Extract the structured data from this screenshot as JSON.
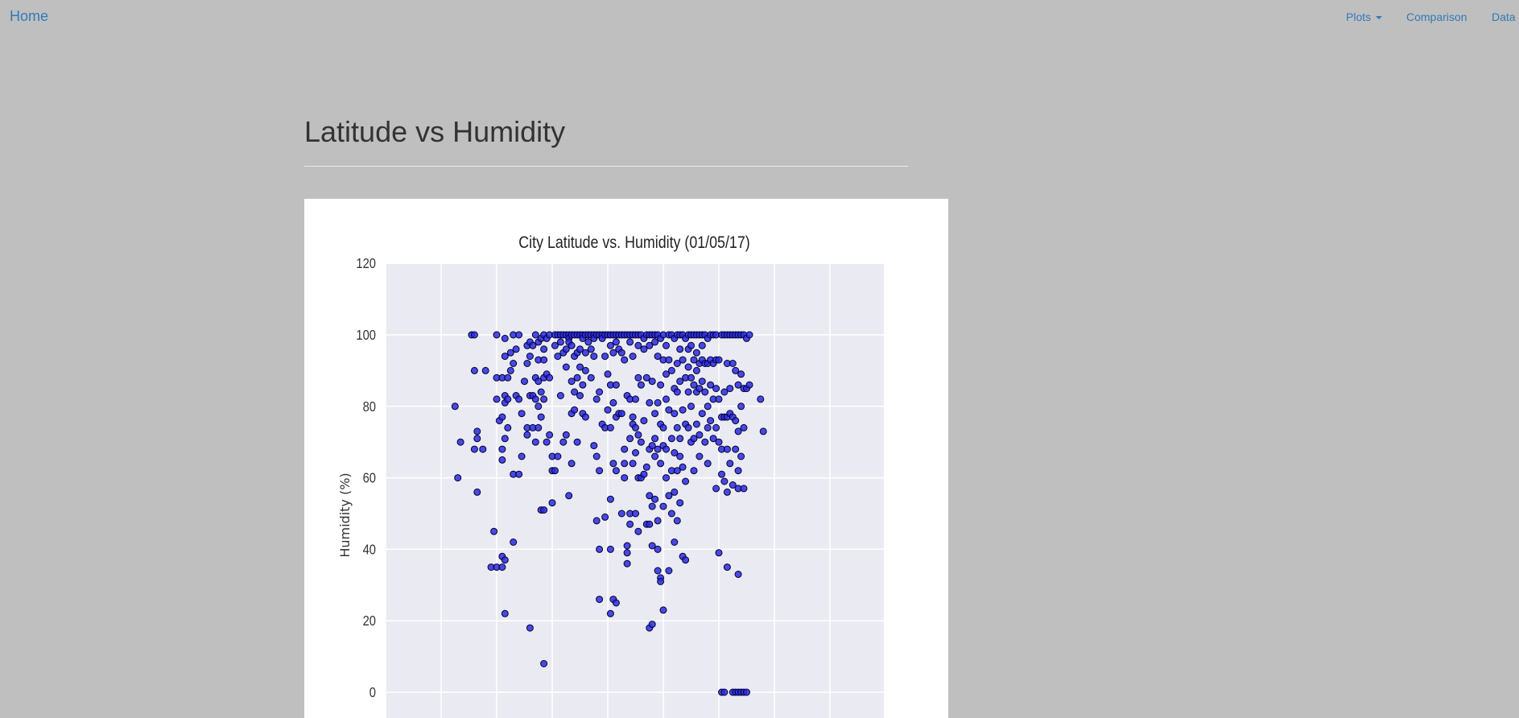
{
  "nav": {
    "brand": "Home",
    "plots_label": "Plots",
    "comparison_label": "Comparison",
    "data_label": "Data"
  },
  "page": {
    "title": "Latitude vs Humidity"
  },
  "chart_data": {
    "type": "scatter",
    "title": "City Latitude vs. Humidity (01/05/17)",
    "xlabel": "",
    "ylabel": "Humidity (%)",
    "xlim": [
      -60,
      120
    ],
    "ylim": [
      -10,
      120
    ],
    "y_ticks": [
      0,
      20,
      40,
      60,
      80,
      100,
      120
    ],
    "x_grid": [
      -60,
      -40,
      -20,
      0,
      20,
      40,
      60,
      80,
      100,
      120
    ],
    "grid": true,
    "marker_color": "#2b2be0",
    "marker_edge": "#000033",
    "plot_bg": "#eaeaf2",
    "points": [
      [
        -35,
        80
      ],
      [
        -34,
        60
      ],
      [
        -33,
        70
      ],
      [
        -29,
        100
      ],
      [
        -28,
        100
      ],
      [
        -28,
        90
      ],
      [
        -28,
        68
      ],
      [
        -27,
        71
      ],
      [
        -27,
        73
      ],
      [
        -27,
        56
      ],
      [
        -25,
        68
      ],
      [
        -24,
        90
      ],
      [
        -22,
        35
      ],
      [
        -21,
        45
      ],
      [
        -20,
        100
      ],
      [
        -20,
        88
      ],
      [
        -20,
        82
      ],
      [
        -20,
        35
      ],
      [
        -19,
        76
      ],
      [
        -18,
        88
      ],
      [
        -18,
        65
      ],
      [
        -18,
        68
      ],
      [
        -18,
        77
      ],
      [
        -18,
        38
      ],
      [
        -18,
        35
      ],
      [
        -17,
        94
      ],
      [
        -17,
        99
      ],
      [
        -17,
        83
      ],
      [
        -17,
        81
      ],
      [
        -17,
        71
      ],
      [
        -17,
        37
      ],
      [
        -17,
        22
      ],
      [
        -16,
        88
      ],
      [
        -16,
        82
      ],
      [
        -16,
        74
      ],
      [
        -15,
        95
      ],
      [
        -15,
        90
      ],
      [
        -14,
        100
      ],
      [
        -14,
        92
      ],
      [
        -14,
        61
      ],
      [
        -14,
        42
      ],
      [
        -13,
        96
      ],
      [
        -13,
        83
      ],
      [
        -12,
        100
      ],
      [
        -12,
        82
      ],
      [
        -12,
        61
      ],
      [
        -11,
        66
      ],
      [
        -11,
        78
      ],
      [
        -10,
        87
      ],
      [
        -9,
        97
      ],
      [
        -9,
        92
      ],
      [
        -9,
        74
      ],
      [
        -9,
        72
      ],
      [
        -8,
        98
      ],
      [
        -8,
        94
      ],
      [
        -8,
        83
      ],
      [
        -8,
        18
      ],
      [
        -7,
        97
      ],
      [
        -7,
        83
      ],
      [
        -7,
        74
      ],
      [
        -6,
        100
      ],
      [
        -6,
        88
      ],
      [
        -6,
        82
      ],
      [
        -6,
        70
      ],
      [
        -5,
        98
      ],
      [
        -5,
        93
      ],
      [
        -5,
        87
      ],
      [
        -5,
        80
      ],
      [
        -5,
        74
      ],
      [
        -4,
        99
      ],
      [
        -4,
        84
      ],
      [
        -4,
        77
      ],
      [
        -4,
        51
      ],
      [
        -3,
        100
      ],
      [
        -3,
        96
      ],
      [
        -3,
        93
      ],
      [
        -3,
        88
      ],
      [
        -3,
        82
      ],
      [
        -3,
        51
      ],
      [
        -3,
        8
      ],
      [
        -2,
        99
      ],
      [
        -2,
        89
      ],
      [
        -2,
        70
      ],
      [
        -1,
        100
      ],
      [
        -1,
        88
      ],
      [
        -1,
        72
      ],
      [
        0,
        66
      ],
      [
        0,
        62
      ],
      [
        0,
        53
      ],
      [
        1,
        100
      ],
      [
        1,
        97
      ],
      [
        1,
        62
      ],
      [
        2,
        100
      ],
      [
        2,
        94
      ],
      [
        2,
        66
      ],
      [
        3,
        100
      ],
      [
        3,
        98
      ],
      [
        3,
        83
      ],
      [
        4,
        100
      ],
      [
        4,
        95
      ],
      [
        4,
        70
      ],
      [
        5,
        100
      ],
      [
        5,
        96
      ],
      [
        5,
        91
      ],
      [
        5,
        72
      ],
      [
        6,
        100
      ],
      [
        6,
        99
      ],
      [
        6,
        98
      ],
      [
        6,
        55
      ],
      [
        7,
        100
      ],
      [
        7,
        97
      ],
      [
        7,
        87
      ],
      [
        7,
        78
      ],
      [
        7,
        64
      ],
      [
        8,
        100
      ],
      [
        8,
        94
      ],
      [
        8,
        84
      ],
      [
        8,
        79
      ],
      [
        9,
        100
      ],
      [
        9,
        95
      ],
      [
        9,
        88
      ],
      [
        9,
        70
      ],
      [
        10,
        100
      ],
      [
        10,
        96
      ],
      [
        10,
        91
      ],
      [
        10,
        83
      ],
      [
        11,
        100
      ],
      [
        11,
        99
      ],
      [
        11,
        86
      ],
      [
        11,
        78
      ],
      [
        12,
        100
      ],
      [
        12,
        95
      ],
      [
        12,
        90
      ],
      [
        12,
        77
      ],
      [
        13,
        100
      ],
      [
        13,
        98
      ],
      [
        14,
        100
      ],
      [
        14,
        96
      ],
      [
        14,
        88
      ],
      [
        15,
        100
      ],
      [
        15,
        99
      ],
      [
        15,
        94
      ],
      [
        15,
        69
      ],
      [
        16,
        100
      ],
      [
        16,
        82
      ],
      [
        16,
        66
      ],
      [
        16,
        48
      ],
      [
        17,
        100
      ],
      [
        17,
        84
      ],
      [
        17,
        62
      ],
      [
        17,
        40
      ],
      [
        17,
        26
      ],
      [
        18,
        100
      ],
      [
        18,
        99
      ],
      [
        18,
        75
      ],
      [
        19,
        100
      ],
      [
        19,
        94
      ],
      [
        19,
        74
      ],
      [
        19,
        49
      ],
      [
        20,
        100
      ],
      [
        20,
        89
      ],
      [
        20,
        79
      ],
      [
        21,
        100
      ],
      [
        21,
        97
      ],
      [
        21,
        86
      ],
      [
        21,
        74
      ],
      [
        21,
        54
      ],
      [
        21,
        40
      ],
      [
        21,
        22
      ],
      [
        22,
        100
      ],
      [
        22,
        95
      ],
      [
        22,
        81
      ],
      [
        22,
        64
      ],
      [
        22,
        26
      ],
      [
        23,
        100
      ],
      [
        23,
        98
      ],
      [
        23,
        86
      ],
      [
        23,
        77
      ],
      [
        23,
        62
      ],
      [
        23,
        25
      ],
      [
        24,
        100
      ],
      [
        24,
        96
      ],
      [
        24,
        78
      ],
      [
        25,
        100
      ],
      [
        25,
        95
      ],
      [
        25,
        78
      ],
      [
        25,
        50
      ],
      [
        26,
        100
      ],
      [
        26,
        93
      ],
      [
        26,
        68
      ],
      [
        26,
        60
      ],
      [
        26,
        64
      ],
      [
        27,
        100
      ],
      [
        27,
        83
      ],
      [
        27,
        41
      ],
      [
        27,
        39
      ],
      [
        27,
        36
      ],
      [
        28,
        100
      ],
      [
        28,
        98
      ],
      [
        28,
        82
      ],
      [
        28,
        71
      ],
      [
        28,
        50
      ],
      [
        28,
        47
      ],
      [
        29,
        100
      ],
      [
        29,
        94
      ],
      [
        29,
        77
      ],
      [
        29,
        75
      ],
      [
        29,
        64
      ],
      [
        30,
        100
      ],
      [
        30,
        82
      ],
      [
        30,
        74
      ],
      [
        30,
        67
      ],
      [
        30,
        50
      ],
      [
        31,
        100
      ],
      [
        31,
        97
      ],
      [
        31,
        88
      ],
      [
        31,
        72
      ],
      [
        31,
        60
      ],
      [
        31,
        45
      ],
      [
        32,
        100
      ],
      [
        32,
        86
      ],
      [
        32,
        70
      ],
      [
        32,
        60
      ],
      [
        33,
        99
      ],
      [
        33,
        96
      ],
      [
        33,
        76
      ],
      [
        33,
        61
      ],
      [
        34,
        100
      ],
      [
        34,
        88
      ],
      [
        34,
        63
      ],
      [
        34,
        47
      ],
      [
        35,
        100
      ],
      [
        35,
        97
      ],
      [
        35,
        81
      ],
      [
        35,
        68
      ],
      [
        35,
        55
      ],
      [
        35,
        47
      ],
      [
        35,
        18
      ],
      [
        36,
        100
      ],
      [
        36,
        87
      ],
      [
        36,
        69
      ],
      [
        36,
        52
      ],
      [
        36,
        41
      ],
      [
        36,
        19
      ],
      [
        37,
        100
      ],
      [
        37,
        98
      ],
      [
        37,
        78
      ],
      [
        37,
        71
      ],
      [
        37,
        66
      ],
      [
        37,
        54
      ],
      [
        38,
        100
      ],
      [
        38,
        94
      ],
      [
        38,
        81
      ],
      [
        38,
        68
      ],
      [
        38,
        48
      ],
      [
        38,
        40
      ],
      [
        38,
        34
      ],
      [
        39,
        99
      ],
      [
        39,
        86
      ],
      [
        39,
        75
      ],
      [
        39,
        64
      ],
      [
        39,
        32
      ],
      [
        39,
        31
      ],
      [
        40,
        100
      ],
      [
        40,
        93
      ],
      [
        40,
        74
      ],
      [
        40,
        69
      ],
      [
        40,
        52
      ],
      [
        40,
        23
      ],
      [
        41,
        97
      ],
      [
        41,
        89
      ],
      [
        41,
        82
      ],
      [
        41,
        68
      ],
      [
        41,
        60
      ],
      [
        42,
        100
      ],
      [
        42,
        93
      ],
      [
        42,
        79
      ],
      [
        42,
        55
      ],
      [
        42,
        34
      ],
      [
        43,
        100
      ],
      [
        43,
        90
      ],
      [
        43,
        71
      ],
      [
        43,
        62
      ],
      [
        43,
        50
      ],
      [
        44,
        99
      ],
      [
        44,
        85
      ],
      [
        44,
        78
      ],
      [
        44,
        67
      ],
      [
        44,
        56
      ],
      [
        44,
        42
      ],
      [
        45,
        100
      ],
      [
        45,
        92
      ],
      [
        45,
        84
      ],
      [
        45,
        74
      ],
      [
        45,
        62
      ],
      [
        45,
        48
      ],
      [
        46,
        100
      ],
      [
        46,
        96
      ],
      [
        46,
        87
      ],
      [
        46,
        71
      ],
      [
        46,
        66
      ],
      [
        46,
        53
      ],
      [
        47,
        100
      ],
      [
        47,
        93
      ],
      [
        47,
        79
      ],
      [
        47,
        63
      ],
      [
        47,
        38
      ],
      [
        48,
        99
      ],
      [
        48,
        88
      ],
      [
        48,
        75
      ],
      [
        48,
        59
      ],
      [
        48,
        37
      ],
      [
        49,
        100
      ],
      [
        49,
        96
      ],
      [
        49,
        91
      ],
      [
        49,
        84
      ],
      [
        49,
        74
      ],
      [
        50,
        100
      ],
      [
        50,
        97
      ],
      [
        50,
        88
      ],
      [
        50,
        80
      ],
      [
        50,
        70
      ],
      [
        51,
        100
      ],
      [
        51,
        93
      ],
      [
        51,
        86
      ],
      [
        51,
        71
      ],
      [
        51,
        62
      ],
      [
        52,
        100
      ],
      [
        52,
        95
      ],
      [
        52,
        90
      ],
      [
        52,
        84
      ],
      [
        52,
        75
      ],
      [
        53,
        100
      ],
      [
        53,
        92
      ],
      [
        53,
        85
      ],
      [
        53,
        72
      ],
      [
        53,
        66
      ],
      [
        54,
        100
      ],
      [
        54,
        97
      ],
      [
        54,
        93
      ],
      [
        54,
        87
      ],
      [
        54,
        78
      ],
      [
        55,
        100
      ],
      [
        55,
        92
      ],
      [
        55,
        84
      ],
      [
        55,
        70
      ],
      [
        56,
        99
      ],
      [
        56,
        92
      ],
      [
        56,
        80
      ],
      [
        56,
        74
      ],
      [
        56,
        64
      ],
      [
        57,
        100
      ],
      [
        57,
        93
      ],
      [
        57,
        86
      ],
      [
        57,
        76
      ],
      [
        58,
        100
      ],
      [
        58,
        92
      ],
      [
        58,
        82
      ],
      [
        58,
        71
      ],
      [
        59,
        100
      ],
      [
        59,
        93
      ],
      [
        59,
        85
      ],
      [
        59,
        74
      ],
      [
        59,
        57
      ],
      [
        60,
        93
      ],
      [
        60,
        82
      ],
      [
        60,
        70
      ],
      [
        60,
        39
      ],
      [
        61,
        100
      ],
      [
        61,
        77
      ],
      [
        61,
        68
      ],
      [
        61,
        61
      ],
      [
        61,
        0
      ],
      [
        62,
        100
      ],
      [
        62,
        84
      ],
      [
        62,
        77
      ],
      [
        62,
        59
      ],
      [
        62,
        0
      ],
      [
        63,
        100
      ],
      [
        63,
        92
      ],
      [
        63,
        77
      ],
      [
        63,
        68
      ],
      [
        63,
        56
      ],
      [
        63,
        35
      ],
      [
        64,
        100
      ],
      [
        64,
        85
      ],
      [
        64,
        78
      ],
      [
        64,
        64
      ],
      [
        65,
        100
      ],
      [
        65,
        92
      ],
      [
        65,
        77
      ],
      [
        65,
        58
      ],
      [
        65,
        0
      ],
      [
        66,
        100
      ],
      [
        66,
        90
      ],
      [
        66,
        76
      ],
      [
        66,
        68
      ],
      [
        66,
        0
      ],
      [
        67,
        100
      ],
      [
        67,
        86
      ],
      [
        67,
        73
      ],
      [
        67,
        62
      ],
      [
        67,
        57
      ],
      [
        67,
        33
      ],
      [
        67,
        0
      ],
      [
        68,
        100
      ],
      [
        68,
        89
      ],
      [
        68,
        80
      ],
      [
        68,
        66
      ],
      [
        68,
        0
      ],
      [
        69,
        100
      ],
      [
        69,
        85
      ],
      [
        69,
        74
      ],
      [
        69,
        57
      ],
      [
        69,
        0
      ],
      [
        70,
        99
      ],
      [
        70,
        85
      ],
      [
        70,
        0
      ],
      [
        71,
        100
      ],
      [
        71,
        86
      ],
      [
        75,
        82
      ],
      [
        76,
        73
      ]
    ]
  }
}
